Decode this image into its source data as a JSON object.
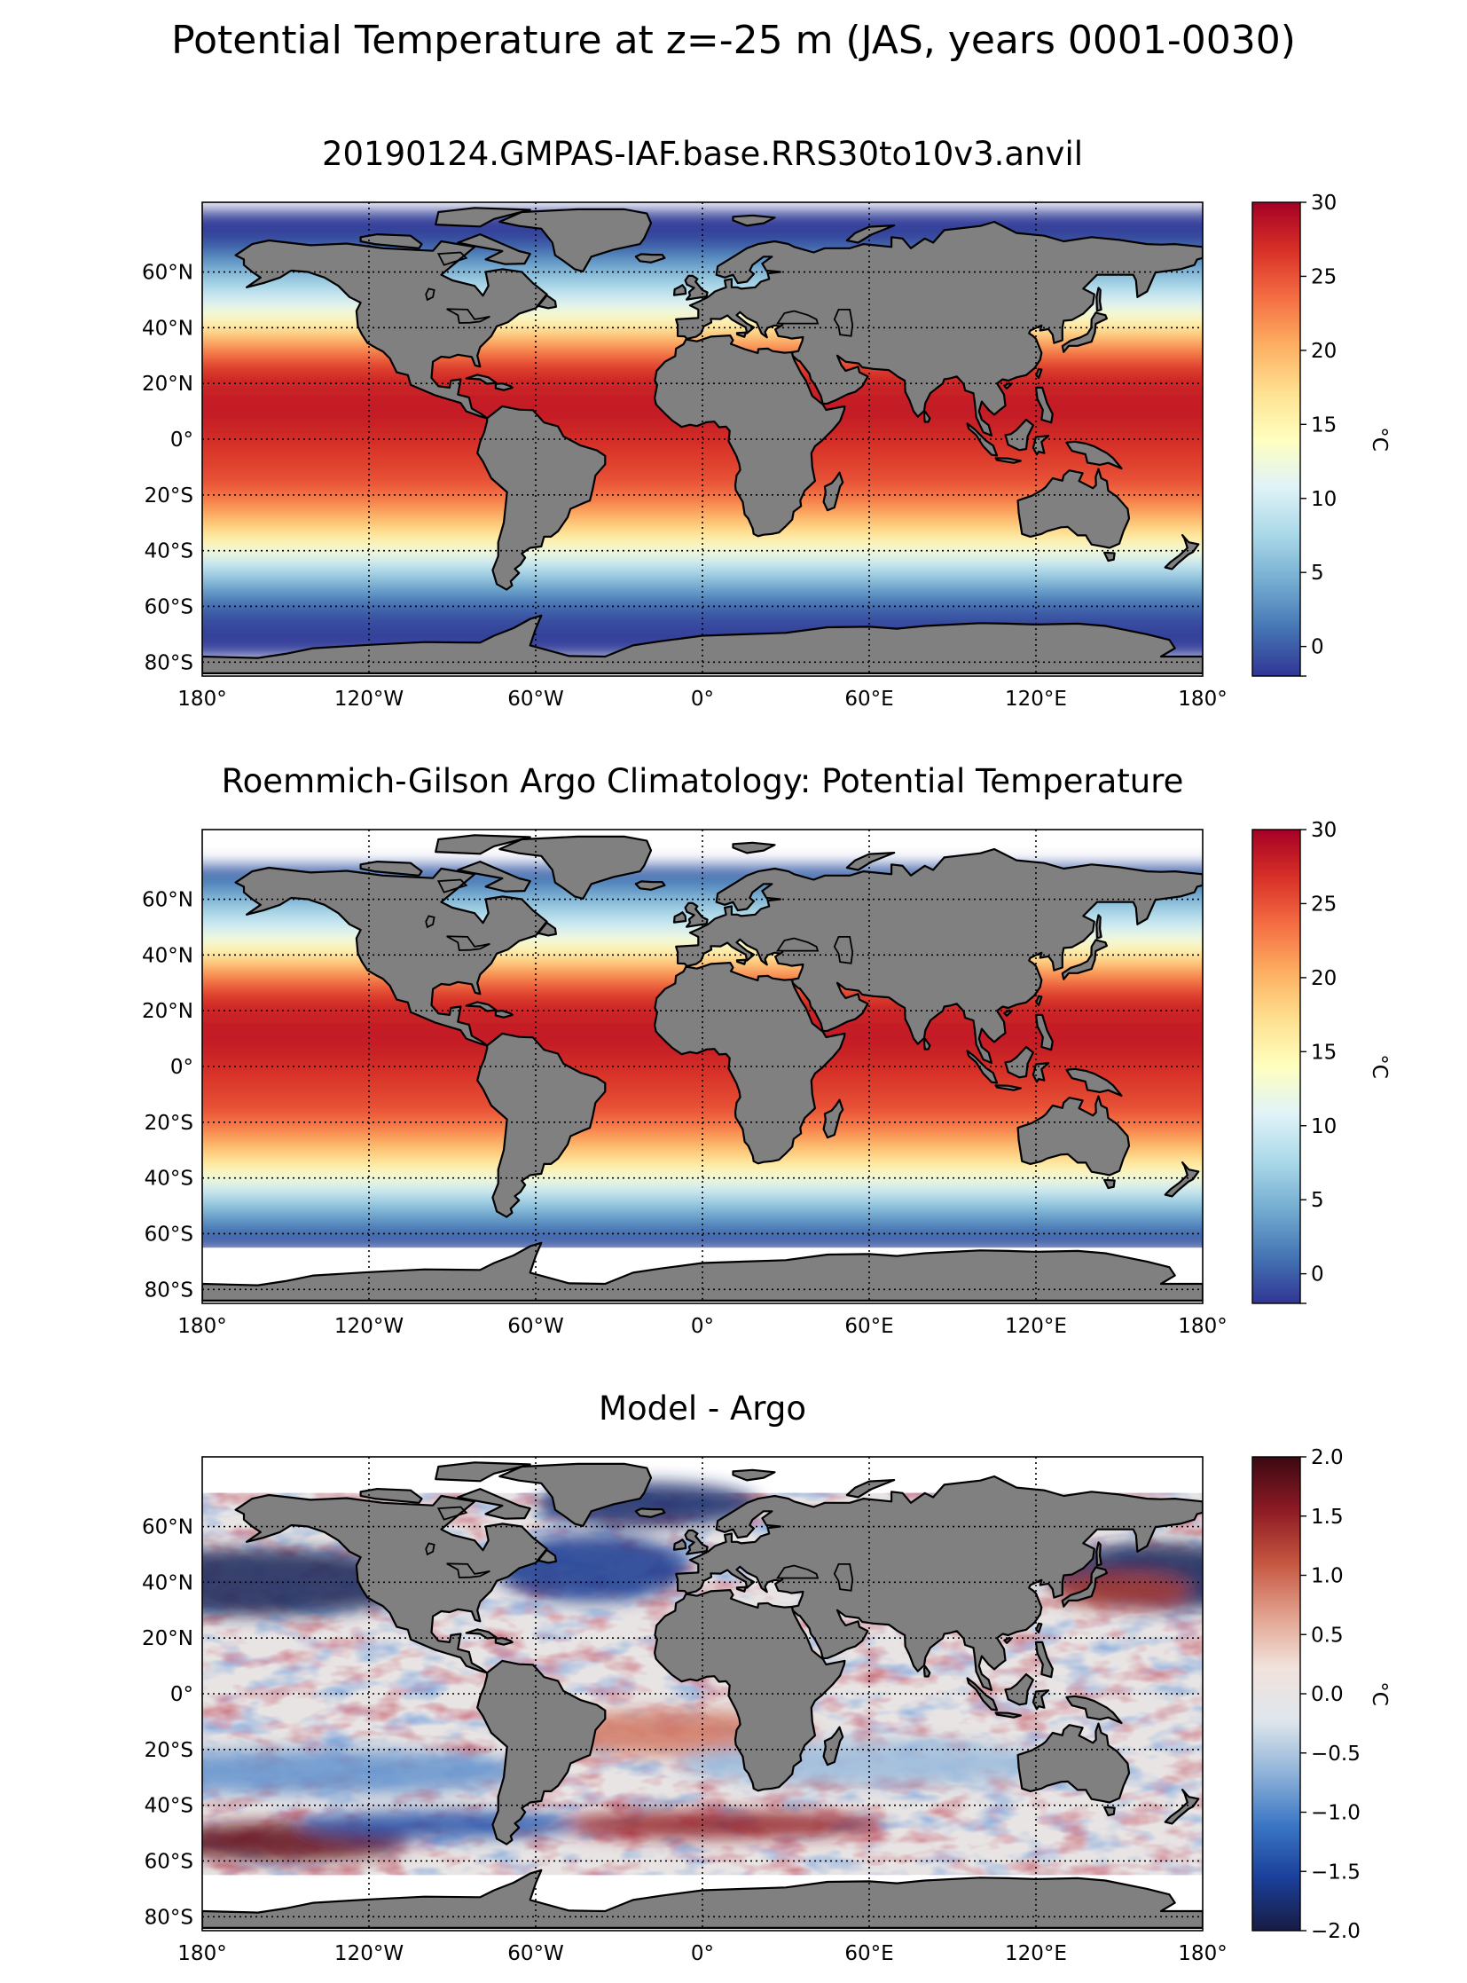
{
  "figure": {
    "suptitle": "Potential Temperature at z=-25 m (JAS, years 0001-0030)"
  },
  "map_axes": {
    "lon_ticks": [
      "180°",
      "120°W",
      "60°W",
      "0°",
      "60°E",
      "120°E",
      "180°"
    ],
    "lat_ticks": [
      "60°N",
      "40°N",
      "20°N",
      "0°",
      "20°S",
      "40°S",
      "60°S",
      "80°S"
    ],
    "gridlines": "dotted",
    "land_color": "#808080"
  },
  "chart_data": [
    {
      "type": "heatmap",
      "title": "20190124.GMPAS-IAF.base.RRS30to10v3.anvil",
      "xlabel": "",
      "ylabel": "",
      "xlim": [
        -180,
        180
      ],
      "ylim": [
        -85,
        85
      ],
      "colorbar": {
        "label": "°C",
        "range": [
          -2,
          30
        ],
        "ticks": [
          -2,
          0,
          5,
          10,
          15,
          20,
          25,
          30
        ],
        "tick_labels": [
          "",
          "0",
          "5",
          "10",
          "15",
          "20",
          "25",
          "30"
        ],
        "colormap": "RdYlBu_r",
        "colors": [
          "#313695",
          "#4575b4",
          "#74add1",
          "#abd9e9",
          "#e0f3f8",
          "#ffffbf",
          "#fee090",
          "#fdae61",
          "#f46d43",
          "#d73027",
          "#a50026"
        ]
      }
    },
    {
      "type": "heatmap",
      "title": "Roemmich-Gilson Argo Climatology: Potential Temperature",
      "xlabel": "",
      "ylabel": "",
      "xlim": [
        -180,
        180
      ],
      "ylim": [
        -85,
        85
      ],
      "colorbar": {
        "label": "°C",
        "range": [
          -2,
          30
        ],
        "ticks": [
          -2,
          0,
          5,
          10,
          15,
          20,
          25,
          30
        ],
        "tick_labels": [
          "",
          "0",
          "5",
          "10",
          "15",
          "20",
          "25",
          "30"
        ],
        "colormap": "RdYlBu_r",
        "colors": [
          "#313695",
          "#4575b4",
          "#74add1",
          "#abd9e9",
          "#e0f3f8",
          "#ffffbf",
          "#fee090",
          "#fdae61",
          "#f46d43",
          "#d73027",
          "#a50026"
        ]
      }
    },
    {
      "type": "heatmap",
      "title": "Model - Argo",
      "xlabel": "",
      "ylabel": "",
      "xlim": [
        -180,
        180
      ],
      "ylim": [
        -85,
        85
      ],
      "colorbar": {
        "label": "°C",
        "range": [
          -2,
          2
        ],
        "ticks": [
          -2,
          -1.5,
          -1,
          -0.5,
          0,
          0.5,
          1,
          1.5,
          2
        ],
        "tick_labels": [
          "−2.0",
          "−1.5",
          "−1.0",
          "−0.5",
          "0.0",
          "0.5",
          "1.0",
          "1.5",
          "2.0"
        ],
        "colormap": "balance",
        "colors": [
          "#181c43",
          "#1a3f9a",
          "#3b76c4",
          "#8fb3d9",
          "#dfe6ec",
          "#f1e2dc",
          "#e1a08c",
          "#c4553f",
          "#8c1a24",
          "#3c0912"
        ]
      }
    }
  ]
}
